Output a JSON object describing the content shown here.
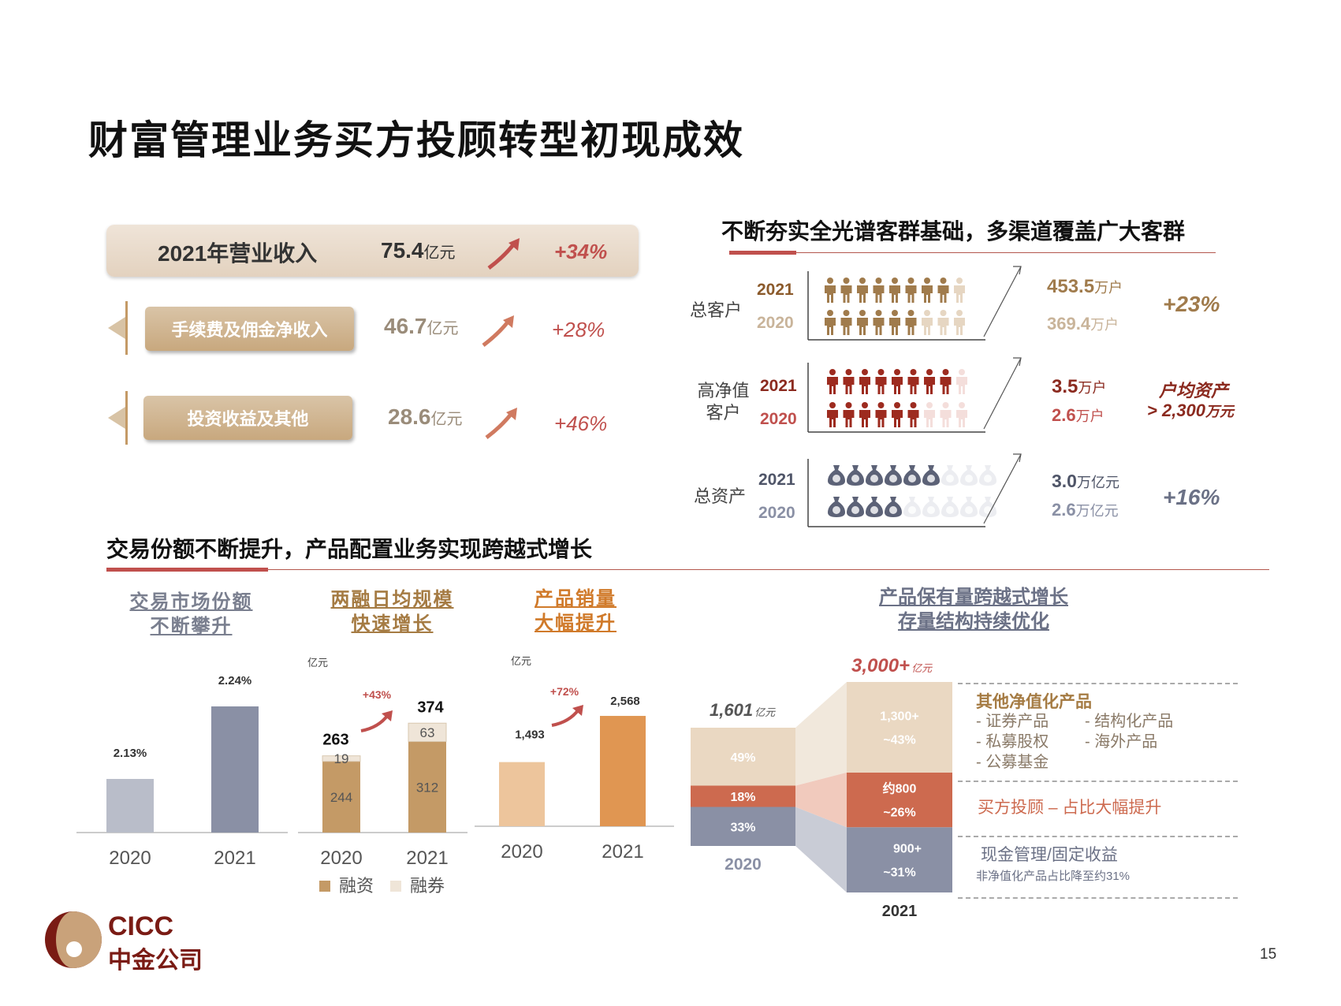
{
  "title": "财富管理业务买方投顾转型初现成效",
  "revenue": {
    "total": {
      "label": "2021年营业收入",
      "value": "75.4",
      "unit": "亿元",
      "growth": "+34%"
    },
    "items": [
      {
        "label": "手续费及佣金净收入",
        "value": "46.7",
        "unit": "亿元",
        "growth": "+28%"
      },
      {
        "label": "投资收益及其他",
        "value": "28.6",
        "unit": "亿元",
        "growth": "+46%"
      }
    ]
  },
  "clients": {
    "header": "不断夯实全光谱客群基础，多渠道覆盖广大客群",
    "rows": [
      {
        "label": "总客户",
        "y2021": "2021",
        "y2020": "2020",
        "v2021": "453.5",
        "u2021": "万户",
        "v2020": "369.4",
        "u2020": "万户",
        "change": "+23%",
        "fill2021": 8,
        "fill2020": 6
      },
      {
        "label": "高净值客户",
        "y2021": "2021",
        "y2020": "2020",
        "v2021": "3.5",
        "u2021": "万户",
        "v2020": "2.6",
        "u2020": "万户",
        "change_line1": "户均资产",
        "change_line2": "> 2,300",
        "change_unit": "万元",
        "fill2021": 8,
        "fill2020": 6
      },
      {
        "label": "总资产",
        "y2021": "2021",
        "y2020": "2020",
        "v2021": "3.0",
        "u2021": "万亿元",
        "v2020": "2.6",
        "u2020": "万亿元",
        "change": "+16%",
        "fill2021": 6,
        "fill2020": 4
      }
    ]
  },
  "lower_header": "交易份额不断提升，产品配置业务实现跨越式增长",
  "chart_data": [
    {
      "type": "bar",
      "subtitle": [
        "交易市场份额",
        "不断攀升"
      ],
      "categories": [
        "2020",
        "2021"
      ],
      "values": [
        2.13,
        2.24
      ],
      "labels": [
        "2.13%",
        "2.24%"
      ],
      "colors": [
        "#b9bdc9",
        "#8a90a5"
      ]
    },
    {
      "type": "bar",
      "subtitle": [
        "两融日均规模",
        "快速增长"
      ],
      "unit": "亿元",
      "categories": [
        "2020",
        "2021"
      ],
      "series": [
        {
          "name": "融资",
          "values": [
            244,
            312
          ],
          "color": "#c49a66"
        },
        {
          "name": "融券",
          "values": [
            19,
            63
          ],
          "color": "#efe5d8"
        }
      ],
      "totals": [
        "263",
        "374"
      ],
      "growth": "+43%"
    },
    {
      "type": "bar",
      "subtitle": [
        "产品销量",
        "大幅提升"
      ],
      "unit": "亿元",
      "categories": [
        "2020",
        "2021"
      ],
      "values": [
        1493,
        2568
      ],
      "labels": [
        "1,493",
        "2,568"
      ],
      "growth": "+72%",
      "colors": [
        "#edc59c",
        "#e09652"
      ]
    },
    {
      "type": "bar",
      "subtitle": [
        "产品保有量跨越式增长",
        "存量结构持续优化"
      ],
      "categories": [
        "2020",
        "2021"
      ],
      "total_2020": "1,601",
      "total_2021": "3,000+",
      "total_unit": "亿元",
      "series": [
        {
          "values": [
            33,
            31
          ],
          "labels": [
            "33%",
            "900+\n~31%"
          ],
          "color": "#8a90a5"
        },
        {
          "values": [
            18,
            26
          ],
          "labels": [
            "18%",
            "约800\n~26%"
          ],
          "color": "#cd6a4f"
        },
        {
          "values": [
            49,
            43
          ],
          "labels": [
            "49%",
            "1,300+\n~43%"
          ],
          "color": "#ead8c2"
        }
      ],
      "notes": {
        "top_title": "其他净值化产品",
        "top_items": [
          "- 证券产品",
          "- 结构化产品",
          "- 私募股权",
          "- 海外产品",
          "- 公募基金"
        ],
        "mid": "买方投顾 – 占比大幅提升",
        "bot_title": "现金管理/固定收益",
        "bot_sub": "非净值化产品占比降至约31%"
      }
    }
  ],
  "footer": {
    "logo_en": "CICC",
    "logo_cn": "中金公司",
    "page": "15"
  },
  "colors": {
    "accent": "#c0504d",
    "gold": "#c49a66",
    "dark_red": "#8b2a1f",
    "slate": "#8a90a5"
  }
}
